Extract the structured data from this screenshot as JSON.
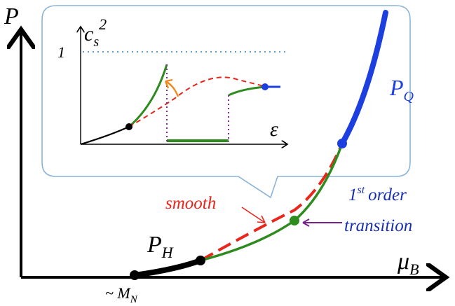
{
  "main_axes": {
    "y_label": "P",
    "x_label": "μ",
    "x_label_sub": "B",
    "origin_tick": "~ M",
    "origin_tick_sub": "N"
  },
  "curves": {
    "hadron_label": "P",
    "hadron_label_sub": "H",
    "quark_label": "P",
    "quark_label_sub": "Q",
    "smooth_label": "smooth",
    "first_order_label_sup": "st",
    "first_order_label_num": "1",
    "first_order_label_rest": "order",
    "first_order_label_line2": "transition"
  },
  "inset": {
    "y_label": "c",
    "y_label_sub": "s",
    "y_label_sup": "2",
    "one_label": "1",
    "x_label": "ε"
  },
  "colors": {
    "axis": "#000000",
    "hadron": "#000000",
    "first_order": "#2e8b1e",
    "smooth": "#e8261c",
    "quark": "#1d3fe0",
    "quark_label": "#1d3fe0",
    "first_order_text": "#1a2fb0",
    "annotation_arrow": "#7a1f8f",
    "orange_arrow": "#f08a1e",
    "inset_border": "#8ab4d8",
    "dotted_one": "#5aa0d8",
    "purple_dotted": "#8a2a9a",
    "blue_point": "#1d3fe0"
  }
}
